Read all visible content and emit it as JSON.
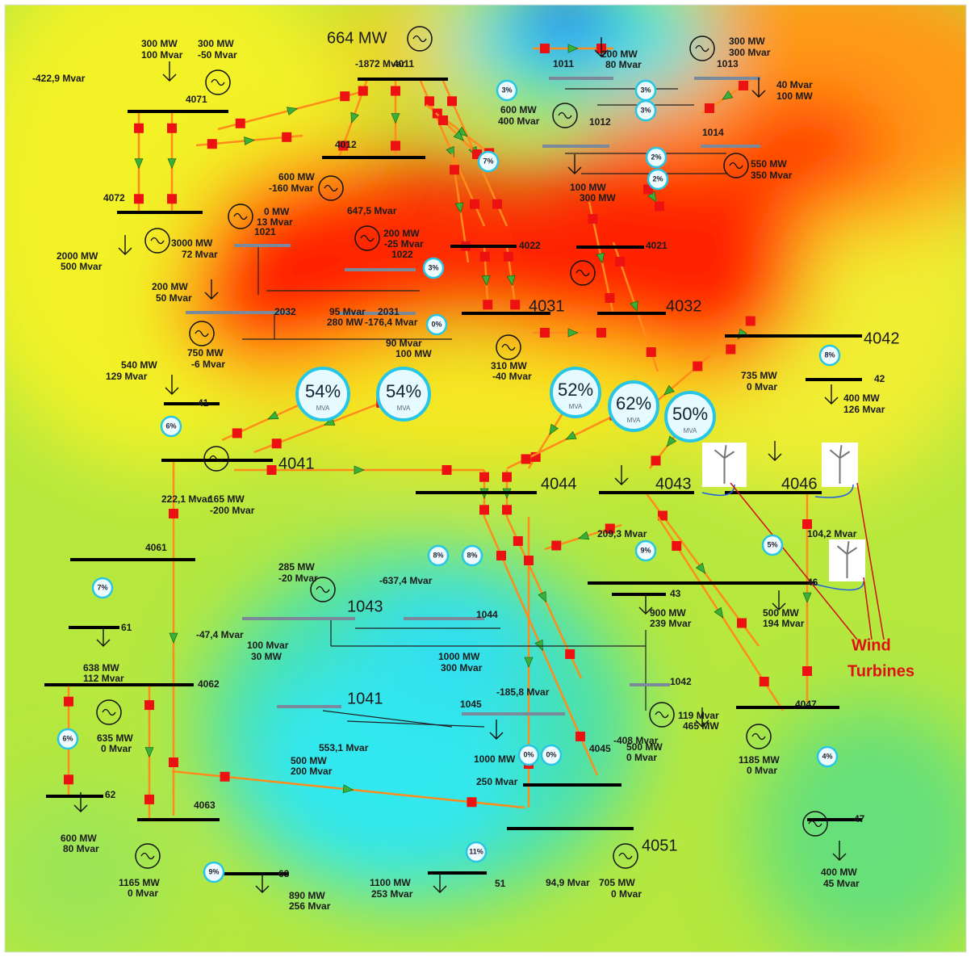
{
  "headline": "664 MW",
  "bus_labels": [
    "4011",
    "4071",
    "4072",
    "4012",
    "1011",
    "1012",
    "1013",
    "1014",
    "1021",
    "1022",
    "4022",
    "4021",
    "2032",
    "2031",
    "4031",
    "4032",
    "4042",
    "42",
    "41",
    "4041",
    "4044",
    "4043",
    "4046",
    "4061",
    "61",
    "1043",
    "1044",
    "43",
    "46",
    "4062",
    "1041",
    "1042",
    "1045",
    "4045",
    "4047",
    "62",
    "4063",
    "4051",
    "63",
    "47",
    "51"
  ],
  "flow_labels": [
    "300 MW",
    "100 Mvar",
    "300 MW",
    "-50 Mvar",
    "-422,9 Mvar",
    "-1872 Mvar",
    "2000 MW",
    "500 Mvar",
    "3000 MW",
    "72 Mvar",
    "0 MW",
    "13 Mvar",
    "600 MW",
    "-160 Mvar",
    "647,5 Mvar",
    "200 MW",
    "-25 Mvar",
    "600 MW",
    "400 Mvar",
    "200 MW",
    "80 Mvar",
    "300 MW",
    "300 Mvar",
    "40 Mvar",
    "100 MW",
    "100 MW",
    "300 MW",
    "550 MW",
    "350 Mvar",
    "200 MW",
    "50 Mvar",
    "95 Mvar",
    "280 MW",
    "-176,4 Mvar",
    "90 Mvar",
    "100 MW",
    "750 MW",
    "-6 Mvar",
    "540 MW",
    "129 Mvar",
    "310 MW",
    "-40 Mvar",
    "735 MW",
    "0 Mvar",
    "400 MW",
    "126 Mvar",
    "222,1 Mvar",
    "165 MW",
    "-200 Mvar",
    "209,3 Mvar",
    "104,2 Mvar",
    "285 MW",
    "-20 Mvar",
    "-637,4 Mvar",
    "-47,4 Mvar",
    "100 Mvar",
    "30 MW",
    "1000 MW",
    "300 Mvar",
    "900 MW",
    "239 Mvar",
    "500 MW",
    "194 Mvar",
    "638 MW",
    "112 Mvar",
    "-185,8 Mvar",
    "119 Mvar",
    "465 MW",
    "-408 Mvar",
    "500 MW",
    "0 Mvar",
    "635 MW",
    "0 Mvar",
    "553,1 Mvar",
    "500 MW",
    "200 Mvar",
    "1000 MW",
    "250 Mvar",
    "1185 MW",
    "0 Mvar",
    "600 MW",
    "80 Mvar",
    "1165 MW",
    "0 Mvar",
    "890 MW",
    "256 Mvar",
    "1100 MW",
    "253 Mvar",
    "94,9 Mvar",
    "705 MW",
    "0 Mvar",
    "400 MW",
    "45 Mvar"
  ],
  "major_loadings": [
    "54%",
    "54%",
    "52%",
    "62%",
    "50%"
  ],
  "loading_unit": "MVA",
  "minor_loadings": [
    "3%",
    "3%",
    "3%",
    "3%",
    "2%",
    "2%",
    "7%",
    "8%",
    "6%",
    "7%",
    "9%",
    "5%",
    "8%",
    "8%",
    "6%",
    "0%",
    "0%",
    "9%",
    "11%",
    "4%",
    "0%"
  ],
  "annotation": [
    "Wind",
    "Turbines"
  ]
}
